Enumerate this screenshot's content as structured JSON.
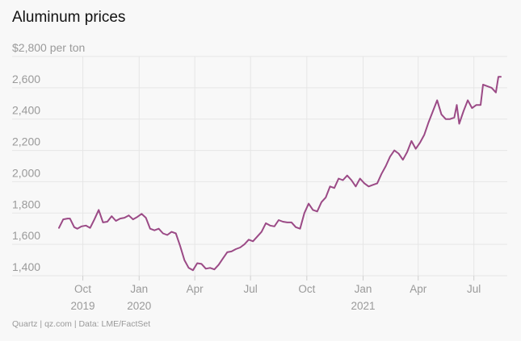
{
  "title": "Aluminum prices",
  "source": "Quartz | qz.com | Data: LME/FactSet",
  "colors": {
    "line": "#9b4a86",
    "grid": "#e6e6e6",
    "axis_text": "#9a9a9a",
    "background": "#f8f8f8"
  },
  "chart_data": {
    "type": "line",
    "title": "Aluminum prices",
    "ylabel": "",
    "xlabel": "",
    "ylim": [
      1400,
      2800
    ],
    "yticks": [
      {
        "value": 2800,
        "label": "$2,800 per ton"
      },
      {
        "value": 2600,
        "label": "2,600"
      },
      {
        "value": 2400,
        "label": "2,400"
      },
      {
        "value": 2200,
        "label": "2,200"
      },
      {
        "value": 2000,
        "label": "2,000"
      },
      {
        "value": 1800,
        "label": "1,800"
      },
      {
        "value": 1600,
        "label": "1,600"
      },
      {
        "value": 1400,
        "label": "1,400"
      }
    ],
    "xticks": [
      {
        "date": "2019-10-01",
        "label": "Oct",
        "year": "2019"
      },
      {
        "date": "2020-01-01",
        "label": "Jan",
        "year": "2020"
      },
      {
        "date": "2020-04-01",
        "label": "Apr",
        "year": ""
      },
      {
        "date": "2020-07-01",
        "label": "Jul",
        "year": ""
      },
      {
        "date": "2020-10-01",
        "label": "Oct",
        "year": ""
      },
      {
        "date": "2021-01-01",
        "label": "Jan",
        "year": "2021"
      },
      {
        "date": "2021-04-01",
        "label": "Apr",
        "year": ""
      },
      {
        "date": "2021-07-01",
        "label": "Jul",
        "year": ""
      }
    ],
    "grid": true,
    "series": [
      {
        "points": [
          [
            "2019-08-23",
            1705
          ],
          [
            "2019-08-30",
            1760
          ],
          [
            "2019-09-06",
            1765
          ],
          [
            "2019-09-10",
            1765
          ],
          [
            "2019-09-17",
            1710
          ],
          [
            "2019-09-22",
            1700
          ],
          [
            "2019-09-29",
            1715
          ],
          [
            "2019-10-06",
            1720
          ],
          [
            "2019-10-13",
            1705
          ],
          [
            "2019-10-20",
            1760
          ],
          [
            "2019-10-27",
            1820
          ],
          [
            "2019-11-03",
            1740
          ],
          [
            "2019-11-10",
            1745
          ],
          [
            "2019-11-17",
            1780
          ],
          [
            "2019-11-24",
            1750
          ],
          [
            "2019-12-01",
            1765
          ],
          [
            "2019-12-08",
            1770
          ],
          [
            "2019-12-15",
            1785
          ],
          [
            "2019-12-22",
            1760
          ],
          [
            "2019-12-29",
            1775
          ],
          [
            "2020-01-05",
            1795
          ],
          [
            "2020-01-12",
            1770
          ],
          [
            "2020-01-19",
            1700
          ],
          [
            "2020-01-26",
            1690
          ],
          [
            "2020-02-02",
            1700
          ],
          [
            "2020-02-09",
            1670
          ],
          [
            "2020-02-16",
            1660
          ],
          [
            "2020-02-23",
            1680
          ],
          [
            "2020-03-01",
            1670
          ],
          [
            "2020-03-08",
            1590
          ],
          [
            "2020-03-15",
            1500
          ],
          [
            "2020-03-22",
            1450
          ],
          [
            "2020-03-29",
            1435
          ],
          [
            "2020-04-05",
            1480
          ],
          [
            "2020-04-12",
            1475
          ],
          [
            "2020-04-19",
            1445
          ],
          [
            "2020-04-26",
            1450
          ],
          [
            "2020-05-03",
            1440
          ],
          [
            "2020-05-10",
            1470
          ],
          [
            "2020-05-17",
            1510
          ],
          [
            "2020-05-24",
            1550
          ],
          [
            "2020-05-31",
            1555
          ],
          [
            "2020-06-07",
            1570
          ],
          [
            "2020-06-14",
            1580
          ],
          [
            "2020-06-21",
            1600
          ],
          [
            "2020-06-28",
            1630
          ],
          [
            "2020-07-05",
            1620
          ],
          [
            "2020-07-12",
            1650
          ],
          [
            "2020-07-19",
            1680
          ],
          [
            "2020-07-26",
            1735
          ],
          [
            "2020-08-02",
            1720
          ],
          [
            "2020-08-09",
            1715
          ],
          [
            "2020-08-16",
            1755
          ],
          [
            "2020-08-23",
            1745
          ],
          [
            "2020-08-30",
            1740
          ],
          [
            "2020-09-06",
            1740
          ],
          [
            "2020-09-13",
            1710
          ],
          [
            "2020-09-20",
            1700
          ],
          [
            "2020-09-27",
            1800
          ],
          [
            "2020-10-04",
            1860
          ],
          [
            "2020-10-11",
            1820
          ],
          [
            "2020-10-18",
            1810
          ],
          [
            "2020-10-25",
            1870
          ],
          [
            "2020-11-01",
            1900
          ],
          [
            "2020-11-08",
            1970
          ],
          [
            "2020-11-15",
            1960
          ],
          [
            "2020-11-22",
            2020
          ],
          [
            "2020-11-29",
            2010
          ],
          [
            "2020-12-06",
            2040
          ],
          [
            "2020-12-13",
            2010
          ],
          [
            "2020-12-20",
            1970
          ],
          [
            "2020-12-27",
            2020
          ],
          [
            "2021-01-03",
            1990
          ],
          [
            "2021-01-10",
            1970
          ],
          [
            "2021-01-17",
            1980
          ],
          [
            "2021-01-24",
            1990
          ],
          [
            "2021-01-31",
            2050
          ],
          [
            "2021-02-07",
            2100
          ],
          [
            "2021-02-14",
            2160
          ],
          [
            "2021-02-21",
            2200
          ],
          [
            "2021-02-28",
            2180
          ],
          [
            "2021-03-07",
            2140
          ],
          [
            "2021-03-14",
            2190
          ],
          [
            "2021-03-21",
            2260
          ],
          [
            "2021-03-28",
            2210
          ],
          [
            "2021-04-04",
            2250
          ],
          [
            "2021-04-11",
            2300
          ],
          [
            "2021-04-18",
            2380
          ],
          [
            "2021-04-25",
            2450
          ],
          [
            "2021-05-02",
            2520
          ],
          [
            "2021-05-09",
            2430
          ],
          [
            "2021-05-16",
            2400
          ],
          [
            "2021-05-23",
            2400
          ],
          [
            "2021-05-30",
            2410
          ],
          [
            "2021-06-03",
            2490
          ],
          [
            "2021-06-07",
            2370
          ],
          [
            "2021-06-14",
            2450
          ],
          [
            "2021-06-21",
            2520
          ],
          [
            "2021-06-28",
            2470
          ],
          [
            "2021-07-05",
            2490
          ],
          [
            "2021-07-12",
            2490
          ],
          [
            "2021-07-16",
            2620
          ],
          [
            "2021-07-23",
            2610
          ],
          [
            "2021-07-30",
            2600
          ],
          [
            "2021-08-06",
            2570
          ],
          [
            "2021-08-10",
            2670
          ],
          [
            "2021-08-14",
            2670
          ]
        ]
      }
    ]
  }
}
